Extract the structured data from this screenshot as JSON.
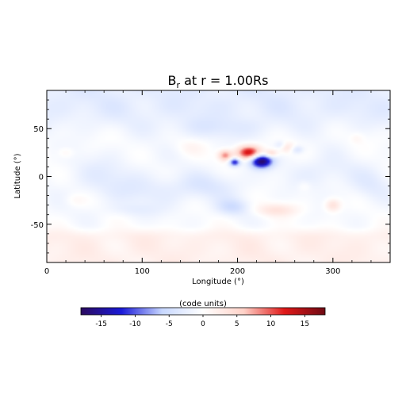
{
  "chart_data": {
    "type": "heatmap",
    "title": "B",
    "title_subscript": "r",
    "title_suffix": " at r = 1.00Rs",
    "xlabel": "Longitude (°)",
    "ylabel": "Latitude (°)",
    "xlim": [
      0,
      360
    ],
    "ylim": [
      -90,
      90
    ],
    "x_ticks": [
      0,
      100,
      200,
      300
    ],
    "y_ticks": [
      -50,
      0,
      50
    ],
    "colorbar": {
      "label": "(code units)",
      "range": [
        -18,
        18
      ],
      "ticks": [
        -15,
        -10,
        -5,
        0,
        5,
        10,
        15
      ],
      "colors": [
        "#2b0a5e",
        "#1a1ad8",
        "#c8d8ff",
        "#ffffff",
        "#ffd2c8",
        "#e01818",
        "#6e0a14"
      ]
    },
    "background_field": {
      "north_polar_value": -2.5,
      "south_polar_value": 2.0
    },
    "features": [
      {
        "lon": 212,
        "lat": 25,
        "value": 14,
        "sx": 9,
        "sy": 5
      },
      {
        "lon": 187,
        "lat": 22,
        "value": 9,
        "sx": 5,
        "sy": 4
      },
      {
        "lon": 225,
        "lat": 16,
        "value": -17,
        "sx": 8,
        "sy": 5
      },
      {
        "lon": 197,
        "lat": 15,
        "value": -12,
        "sx": 4,
        "sy": 3
      },
      {
        "lon": 235,
        "lat": 24,
        "value": 6,
        "sx": 5,
        "sy": 3
      },
      {
        "lon": 252,
        "lat": 30,
        "value": 4,
        "sx": 6,
        "sy": 4
      },
      {
        "lon": 262,
        "lat": 28,
        "value": -4,
        "sx": 5,
        "sy": 3
      },
      {
        "lon": 245,
        "lat": 33,
        "value": -3,
        "sx": 4,
        "sy": 3
      },
      {
        "lon": 300,
        "lat": -30,
        "value": 5,
        "sx": 6,
        "sy": 5
      },
      {
        "lon": 240,
        "lat": -35,
        "value": 4,
        "sx": 16,
        "sy": 5
      },
      {
        "lon": 195,
        "lat": -32,
        "value": -4,
        "sx": 12,
        "sy": 6
      },
      {
        "lon": 170,
        "lat": -10,
        "value": -2.5,
        "sx": 25,
        "sy": 10
      },
      {
        "lon": 110,
        "lat": -15,
        "value": -2,
        "sx": 30,
        "sy": 12
      },
      {
        "lon": 60,
        "lat": 0,
        "value": -2,
        "sx": 25,
        "sy": 15
      },
      {
        "lon": 290,
        "lat": 5,
        "value": -2,
        "sx": 25,
        "sy": 12
      },
      {
        "lon": 20,
        "lat": 25,
        "value": 2,
        "sx": 6,
        "sy": 4
      },
      {
        "lon": 150,
        "lat": 30,
        "value": 1.5,
        "sx": 10,
        "sy": 6
      },
      {
        "lon": 340,
        "lat": -10,
        "value": -2,
        "sx": 15,
        "sy": 12
      },
      {
        "lon": 180,
        "lat": 50,
        "value": -2,
        "sx": 40,
        "sy": 8
      },
      {
        "lon": 325,
        "lat": 40,
        "value": 1.5,
        "sx": 5,
        "sy": 4
      },
      {
        "lon": 270,
        "lat": -10,
        "value": 1.5,
        "sx": 5,
        "sy": 4
      },
      {
        "lon": 90,
        "lat": -35,
        "value": -1.5,
        "sx": 20,
        "sy": 5
      },
      {
        "lon": 30,
        "lat": -25,
        "value": 1.5,
        "sx": 8,
        "sy": 5
      }
    ]
  }
}
